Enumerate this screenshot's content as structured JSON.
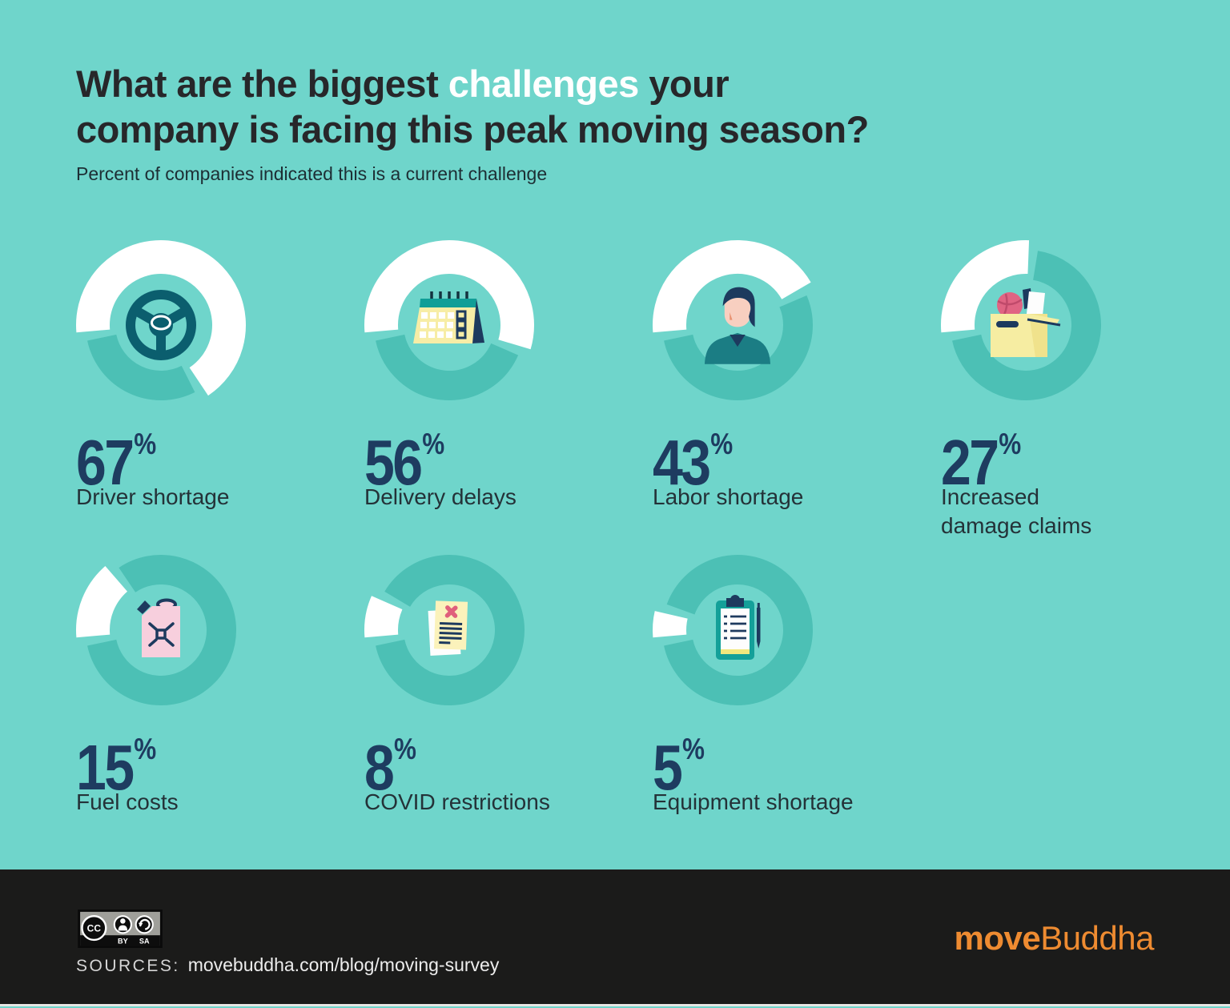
{
  "colors": {
    "background": "#6fd5cb",
    "arc_filled": "#ffffff",
    "arc_remainder": "#4cc0b5",
    "value_text": "#1e3c60",
    "label_text": "#243238",
    "title_text": "#27272a",
    "title_highlight": "#ffffff",
    "footer_background": "#1b1b1a",
    "brand_orange": "#ee8b31"
  },
  "header": {
    "title_line1_pre": "What are the biggest ",
    "title_highlight": "challenges",
    "title_line1_post": " your",
    "title_line2": "company is facing this peak moving season?",
    "subtitle": "Percent of companies indicated this is a current challenge"
  },
  "chart_data": {
    "type": "donut-grid",
    "title": "What are the biggest challenges your company is facing this peak moving season?",
    "subtitle": "Percent of companies indicated this is a current challenge",
    "unit": "%",
    "value_range": [
      0,
      100
    ],
    "legend_position": "none",
    "items": [
      {
        "value": 67,
        "label": "Driver shortage",
        "icon": "steering-wheel"
      },
      {
        "value": 56,
        "label": "Delivery delays",
        "icon": "desk-calendar"
      },
      {
        "value": 43,
        "label": "Labor shortage",
        "icon": "worker-bust"
      },
      {
        "value": 27,
        "label": "Increased damage claims",
        "icon": "open-moving-box"
      },
      {
        "value": 15,
        "label": "Fuel costs",
        "icon": "fuel-can"
      },
      {
        "value": 8,
        "label": "COVID restrictions",
        "icon": "crossed-document"
      },
      {
        "value": 5,
        "label": "Equipment shortage",
        "icon": "clipboard-checklist"
      }
    ]
  },
  "footer": {
    "license": {
      "cc": "CC",
      "by": "BY",
      "sa": "SA"
    },
    "sources_label": "SOURCES:",
    "sources_value": "movebuddha.com/blog/moving-survey",
    "brand_bold": "move",
    "brand_rest": "Buddha"
  }
}
